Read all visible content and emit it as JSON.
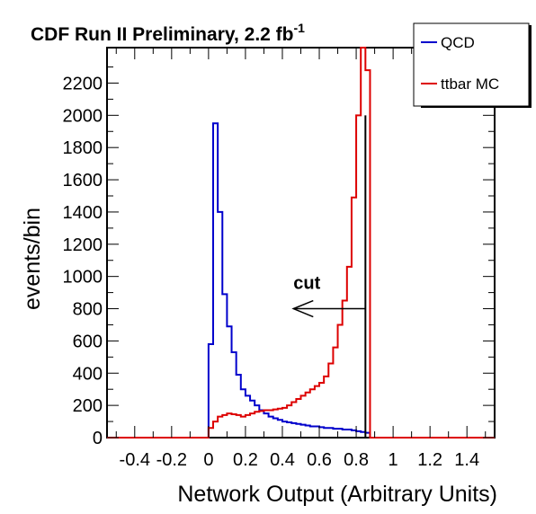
{
  "chart_data": {
    "type": "line",
    "title_main": "CDF Run II Preliminary, 2.2 fb",
    "title_sup": "-1",
    "xlabel": "Network Output (Arbitrary Units)",
    "ylabel": "events/bin",
    "xlim": [
      -0.55,
      1.55
    ],
    "ylim": [
      0,
      2420
    ],
    "x_ticks": [
      -0.4,
      -0.2,
      0,
      0.2,
      0.4,
      0.6,
      0.8,
      1,
      1.2,
      1.4
    ],
    "x_tick_labels": [
      "-0.4",
      "-0.2",
      "0",
      "0.2",
      "0.4",
      "0.6",
      "0.8",
      "1",
      "1.2",
      "1.4"
    ],
    "y_ticks": [
      0,
      200,
      400,
      600,
      800,
      1000,
      1200,
      1400,
      1600,
      1800,
      2000,
      2200
    ],
    "y_tick_labels": [
      "0",
      "200",
      "400",
      "600",
      "800",
      "1000",
      "1200",
      "1400",
      "1600",
      "1800",
      "2000",
      "2200"
    ],
    "legend_position": "top-right",
    "bin_width": 0.025,
    "series": [
      {
        "name": "QCD",
        "color": "#0000cc",
        "x_start": 0,
        "values": [
          580,
          1950,
          1400,
          890,
          690,
          530,
          390,
          300,
          260,
          230,
          200,
          170,
          150,
          130,
          120,
          110,
          100,
          95,
          90,
          85,
          80,
          75,
          70,
          70,
          65,
          60,
          60,
          55,
          55,
          50,
          50,
          45,
          40,
          35,
          30,
          0
        ]
      },
      {
        "name": "ttbar MC",
        "color": "#dd0000",
        "x_start": 0,
        "values": [
          60,
          100,
          130,
          140,
          150,
          145,
          140,
          130,
          140,
          150,
          160,
          165,
          170,
          170,
          175,
          180,
          185,
          200,
          220,
          240,
          260,
          280,
          300,
          320,
          340,
          380,
          460,
          560,
          700,
          850,
          1060,
          1490,
          2000,
          2420,
          2280,
          0
        ]
      }
    ],
    "cut": {
      "label": "cut",
      "x": 0.85,
      "y_top": 2000,
      "arrow_to_x": 0.46,
      "arrow_y": 800
    }
  }
}
